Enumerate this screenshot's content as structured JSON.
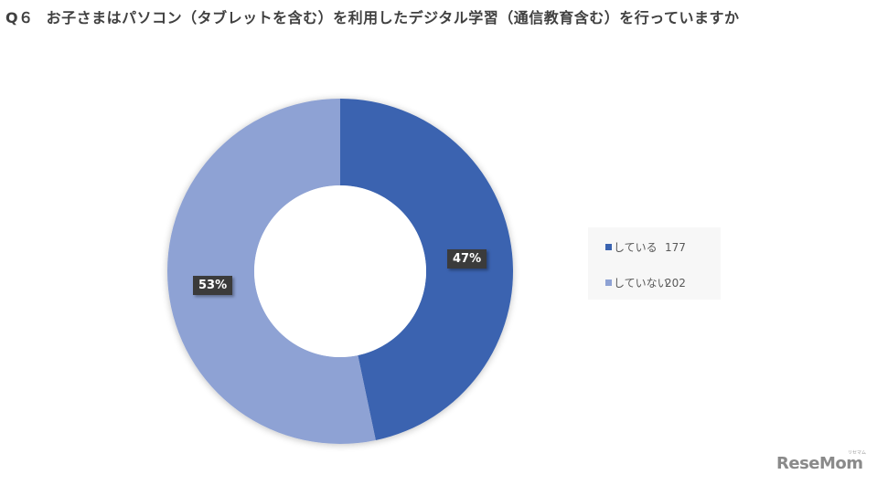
{
  "title": {
    "question": "Q６",
    "text": "お子さまはパソコン（タブレットを含む）を利用したデジタル学習（通信教育含む）を行っていますか"
  },
  "legend": {
    "items": [
      {
        "label": "している",
        "value": "177",
        "color": "#3a63b0"
      },
      {
        "label": "していない",
        "value": "202",
        "color": "#8ea2d4"
      }
    ]
  },
  "data_labels": {
    "yes": "47%",
    "no": "53%"
  },
  "logo": {
    "text": "ReseMom",
    "sub": "リセマム"
  },
  "chart_data": {
    "type": "pie",
    "subtype": "donut",
    "title": "Q６　お子さまはパソコン（タブレットを含む）を利用したデジタル学習（通信教育含む）を行っていますか",
    "categories": [
      "している",
      "していない"
    ],
    "values": [
      177,
      202
    ],
    "percentages": [
      47,
      53
    ],
    "colors": [
      "#3a63b0",
      "#8ea2d4"
    ],
    "legend_position": "right",
    "data_labels": [
      "47%",
      "53%"
    ]
  }
}
